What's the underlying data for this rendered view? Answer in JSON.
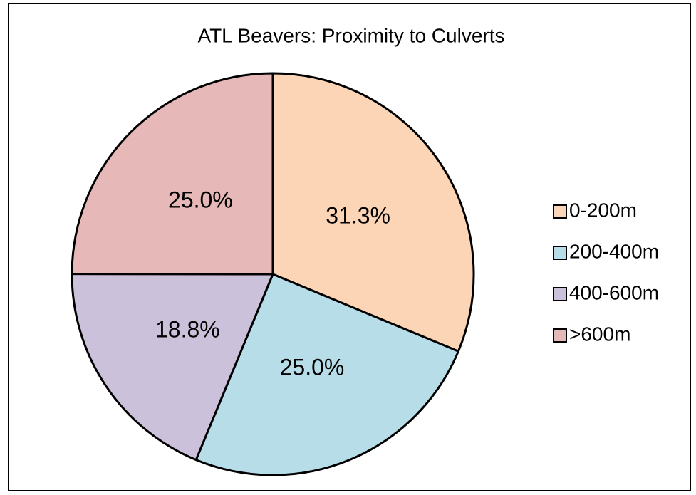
{
  "chart_data": {
    "type": "pie",
    "title": "ATL Beavers: Proximity to Culverts",
    "categories": [
      "0-200m",
      "200-400m",
      "400-600m",
      ">600m"
    ],
    "values": [
      31.3,
      25,
      18.8,
      25
    ],
    "value_labels": [
      "31.3%",
      "25.0%",
      "18.8%",
      "25.0%"
    ],
    "colors": [
      "#fbd5b5",
      "#b7dde8",
      "#ccc1da",
      "#e6b9b8"
    ],
    "legend": "right"
  }
}
